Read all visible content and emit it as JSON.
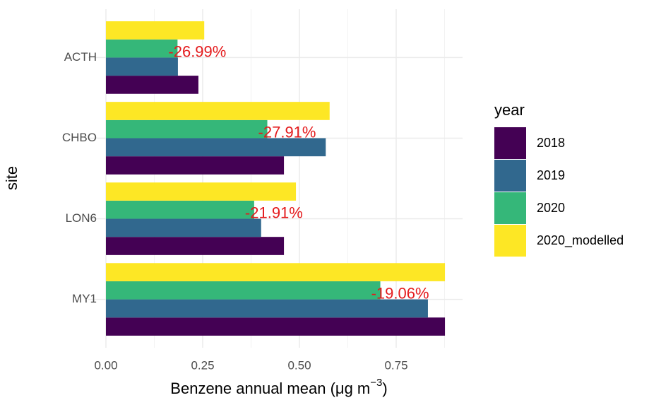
{
  "chart_data": {
    "type": "bar",
    "orientation": "horizontal",
    "xlabel": {
      "text": "Benzene annual mean (μg m",
      "superscript": "−3",
      "suffix": ")"
    },
    "ylabel": "site",
    "categories": [
      "ACTH",
      "CHBO",
      "LON6",
      "MY1"
    ],
    "series": [
      {
        "name": "2018",
        "color": "#440154",
        "values": [
          0.239,
          0.46,
          0.46,
          0.876
        ]
      },
      {
        "name": "2019",
        "color": "#31688E",
        "values": [
          0.186,
          0.568,
          0.401,
          0.832
        ]
      },
      {
        "name": "2020",
        "color": "#35B779",
        "values": [
          0.185,
          0.417,
          0.383,
          0.709
        ]
      },
      {
        "name": "2020_modelled",
        "color": "#FDE725",
        "values": [
          0.254,
          0.578,
          0.491,
          0.876
        ]
      }
    ],
    "change_labels": [
      "-26.99%",
      "-27.91%",
      "-21.91%",
      "-19.06%"
    ],
    "change_label_color": "#E41A1C",
    "legend_title": "year",
    "legend": "right",
    "xlim": [
      -0.0456,
      0.9215
    ],
    "xticks": [
      {
        "value": 0,
        "label": "0.00"
      },
      {
        "value": 0.25,
        "label": "0.25"
      },
      {
        "value": 0.5,
        "label": "0.50"
      },
      {
        "value": 0.75,
        "label": "0.75"
      }
    ],
    "x_minor_grid": [
      0.125,
      0.375,
      0.625,
      0.875
    ],
    "grid": true
  }
}
